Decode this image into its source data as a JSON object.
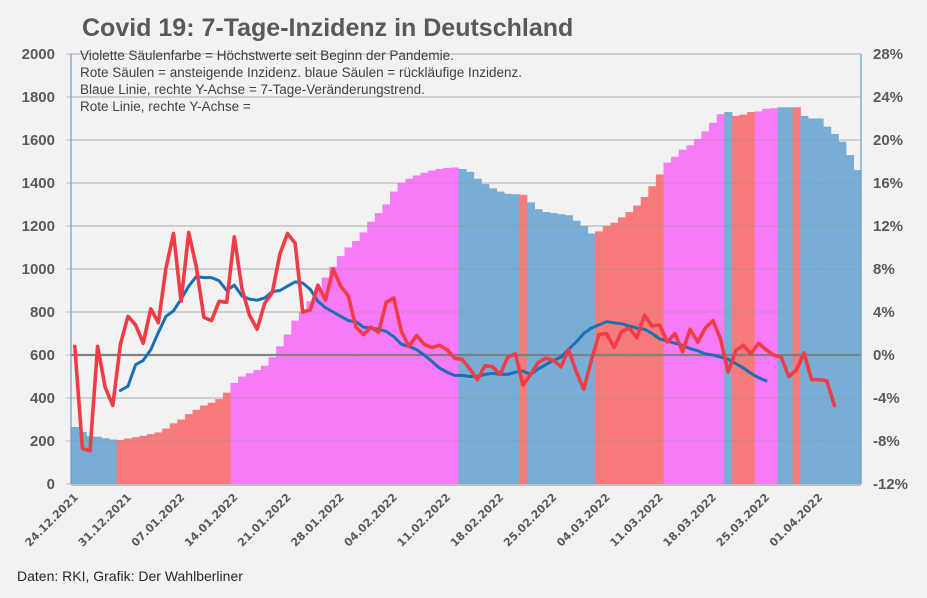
{
  "title": "Covid 19: 7-Tage-Inzidenz in Deutschland",
  "legend_lines": [
    "Violette Säulenfarbe = Höchstwerte seit Beginn der Pandemie.",
    "Rote Säulen = ansteigende Inzidenz. blaue Säulen = rückläufige Inzidenz.",
    "Blaue Linie, rechte Y-Achse = 7-Tage-Veränderungstrend.",
    "Rote Linie, rechte Y-Achse ="
  ],
  "source": "Daten: RKI, Grafik: Der Wahlberliner",
  "colors": {
    "blue_bar": "#78aed6",
    "red_bar": "#f77b7b",
    "violet_bar": "#f77bf7",
    "red_line": "#f03c46",
    "blue_line": "#1a6fb4",
    "zero_line": "#808080",
    "grid": "#bfbfbf",
    "axis": "#6e9cc9"
  },
  "chart_data": {
    "type": "bar",
    "title": "Covid 19: 7-Tage-Inzidenz in Deutschland",
    "xlabel": "",
    "ylabel": "",
    "y2label": "",
    "ylim": [
      0,
      2000
    ],
    "y2lim": [
      -12,
      28
    ],
    "yticks": [
      "0",
      "200",
      "400",
      "600",
      "800",
      "1000",
      "1200",
      "1400",
      "1600",
      "1800",
      "2000"
    ],
    "y2ticks": [
      "-12%",
      "-8%",
      "-4%",
      "0%",
      "4%",
      "8%",
      "12%",
      "16%",
      "20%",
      "24%",
      "28%"
    ],
    "xtick_labels": [
      "24.12.2021",
      "31.12.2021",
      "07.01.2022",
      "14.01.2022",
      "21.01.2022",
      "28.01.2022",
      "04.02.2022",
      "11.02.2022",
      "18.02.2022",
      "25.02.2022",
      "04.03.2022",
      "11.03.2022",
      "18.03.2022",
      "25.03.2022",
      "01.04.2022"
    ],
    "xtick_every": 7,
    "grid": true,
    "bars": {
      "name": "7-Tage-Inzidenz",
      "values": [
        265,
        242,
        222,
        220,
        213,
        207,
        205,
        212,
        218,
        224,
        232,
        240,
        258,
        282,
        300,
        325,
        345,
        365,
        378,
        395,
        425,
        470,
        500,
        515,
        530,
        550,
        590,
        640,
        695,
        760,
        800,
        850,
        905,
        960,
        1010,
        1060,
        1100,
        1130,
        1170,
        1220,
        1260,
        1300,
        1360,
        1400,
        1420,
        1435,
        1448,
        1458,
        1465,
        1470,
        1472,
        1465,
        1452,
        1420,
        1395,
        1375,
        1360,
        1350,
        1348,
        1345,
        1310,
        1278,
        1265,
        1260,
        1255,
        1250,
        1225,
        1200,
        1165,
        1175,
        1200,
        1215,
        1240,
        1265,
        1295,
        1335,
        1385,
        1440,
        1495,
        1522,
        1555,
        1575,
        1605,
        1640,
        1680,
        1720,
        1730,
        1712,
        1718,
        1730,
        1733,
        1745,
        1748,
        1752,
        1752,
        1752,
        1712,
        1700,
        1700,
        1662,
        1628,
        1592,
        1530,
        1460
      ],
      "categories_per_bar": "daily from 24.12.2021",
      "colors_by_segment": [
        {
          "from": 0,
          "to": 5,
          "color": "blue"
        },
        {
          "from": 6,
          "to": 20,
          "color": "red"
        },
        {
          "from": 21,
          "to": 50,
          "color": "violet"
        },
        {
          "from": 51,
          "to": 58,
          "color": "blue"
        },
        {
          "from": 59,
          "to": 59,
          "color": "red"
        },
        {
          "from": 60,
          "to": 68,
          "color": "blue"
        },
        {
          "from": 69,
          "to": 77,
          "color": "red"
        },
        {
          "from": 78,
          "to": 85,
          "color": "violet"
        },
        {
          "from": 86,
          "to": 86,
          "color": "blue"
        },
        {
          "from": 87,
          "to": 89,
          "color": "red"
        },
        {
          "from": 90,
          "to": 92,
          "color": "violet"
        },
        {
          "from": 93,
          "to": 94,
          "color": "blue"
        },
        {
          "from": 95,
          "to": 95,
          "color": "red"
        },
        {
          "from": 96,
          "to": 100,
          "color": "blue"
        }
      ]
    },
    "series": [
      {
        "name": "Rote Linie (Veränderung, rechte Achse)",
        "axis": "right",
        "start_index": 0,
        "values": [
          0.8,
          -8.7,
          -8.9,
          0.8,
          -3.0,
          -4.7,
          1.0,
          3.6,
          2.8,
          1.1,
          4.3,
          3.0,
          8.1,
          11.3,
          5.0,
          11.4,
          8.2,
          3.5,
          3.2,
          5.0,
          4.9,
          11.0,
          6.2,
          3.7,
          2.4,
          4.8,
          5.8,
          9.4,
          11.3,
          10.4,
          4.0,
          4.2,
          6.5,
          5.1,
          8.0,
          6.4,
          5.5,
          2.6,
          1.9,
          2.6,
          2.1,
          4.9,
          5.3,
          2.2,
          0.8,
          1.8,
          1.0,
          0.7,
          0.9,
          0.5,
          -0.3,
          -0.4,
          -1.3,
          -2.3,
          -1.0,
          -1.1,
          -1.8,
          -0.2,
          0.1,
          -2.8,
          -1.8,
          -0.7,
          -0.3,
          -0.5,
          -1.1,
          0.5,
          -1.5,
          -3.2,
          -0.5,
          1.9,
          2.0,
          0.7,
          2.2,
          2.5,
          1.6,
          3.7,
          2.7,
          2.8,
          1.2,
          2.0,
          0.3,
          2.4,
          1.2,
          2.5,
          3.2,
          1.5,
          -1.6,
          0.4,
          0.9,
          0.1,
          1.1,
          0.5,
          0.0,
          -0.2,
          -2.0,
          -1.4,
          0.2,
          -2.3,
          -2.3,
          -2.4,
          -4.7
        ]
      },
      {
        "name": "Blaue Linie (7-Tage-Veränderungstrend, rechte Achse)",
        "axis": "right",
        "start_index": 6,
        "values": [
          -3.3,
          -2.9,
          -0.9,
          -0.5,
          0.5,
          2.1,
          3.6,
          4.1,
          5.2,
          6.4,
          7.3,
          7.2,
          7.2,
          6.9,
          6.0,
          6.5,
          5.5,
          5.2,
          5.1,
          5.3,
          5.9,
          6.0,
          6.4,
          6.8,
          6.7,
          6.1,
          5.0,
          4.4,
          4.0,
          3.6,
          3.2,
          3.1,
          2.6,
          2.5,
          2.4,
          2.2,
          1.7,
          1.0,
          0.8,
          0.5,
          0.0,
          -0.6,
          -1.2,
          -1.6,
          -1.9,
          -1.9,
          -2.0,
          -2.0,
          -1.8,
          -1.7,
          -1.8,
          -1.8,
          -1.6,
          -1.5,
          -1.8,
          -1.3,
          -0.9,
          -0.5,
          -0.2,
          0.5,
          1.2,
          2.0,
          2.5,
          2.8,
          3.1,
          3.0,
          2.9,
          2.7,
          2.5,
          2.4,
          2.0,
          1.5,
          1.3,
          1.1,
          0.9,
          0.6,
          0.4,
          0.1,
          0.0,
          -0.2,
          -0.4,
          -0.8,
          -1.2,
          -1.7,
          -2.1,
          -2.4
        ]
      },
      {
        "name": "Nulllinie",
        "axis": "right",
        "constant": 0
      }
    ],
    "legend": "text-box top-left"
  }
}
